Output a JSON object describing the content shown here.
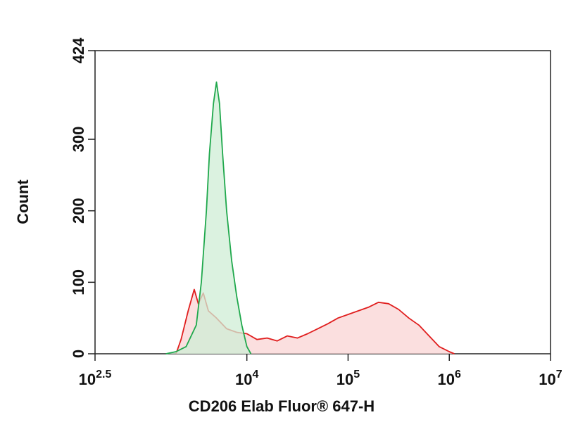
{
  "chart_data": {
    "type": "histogram_overlay",
    "x_label": "CD206 Elab Fluor® 647-H",
    "y_label": "Count",
    "log_x": true,
    "xlim": [
      316.2,
      10000000
    ],
    "ylim": [
      0,
      424
    ],
    "xticks": [
      {
        "value": 316.2,
        "label": "10",
        "exponent": "2.5"
      },
      {
        "value": 10000,
        "label": "10",
        "exponent": "4"
      },
      {
        "value": 100000,
        "label": "10",
        "exponent": "5"
      },
      {
        "value": 1000000,
        "label": "10",
        "exponent": "6"
      },
      {
        "value": 10000000,
        "label": "10",
        "exponent": "7"
      }
    ],
    "yticks": [
      0,
      100,
      200,
      300,
      424
    ],
    "series": [
      {
        "color": "#e01e1e",
        "fill": "#f9d4d4",
        "x": [
          1995,
          2239,
          2630,
          3020,
          3311,
          3715,
          4169,
          5012,
          6310,
          7943,
          10000,
          12589,
          15849,
          19953,
          25119,
          31623,
          39811,
          50119,
          63096,
          79433,
          100000,
          125893,
          158489,
          199526,
          251189,
          316228,
          398107,
          501187,
          630957,
          794328,
          1000000,
          1122018
        ],
        "values": [
          0,
          20,
          60,
          90,
          70,
          85,
          60,
          50,
          35,
          30,
          28,
          20,
          22,
          18,
          25,
          22,
          28,
          35,
          42,
          50,
          55,
          60,
          65,
          72,
          70,
          62,
          50,
          40,
          25,
          10,
          3,
          0
        ]
      },
      {
        "color": "#1fa84c",
        "fill": "#cfeed6",
        "x": [
          1585,
          1995,
          2512,
          3162,
          3548,
          3981,
          4266,
          4677,
          5012,
          5370,
          5754,
          6310,
          7079,
          7943,
          8913,
          10000,
          10965
        ],
        "values": [
          0,
          3,
          10,
          40,
          100,
          200,
          280,
          350,
          380,
          350,
          280,
          200,
          130,
          80,
          40,
          10,
          0
        ]
      }
    ]
  }
}
